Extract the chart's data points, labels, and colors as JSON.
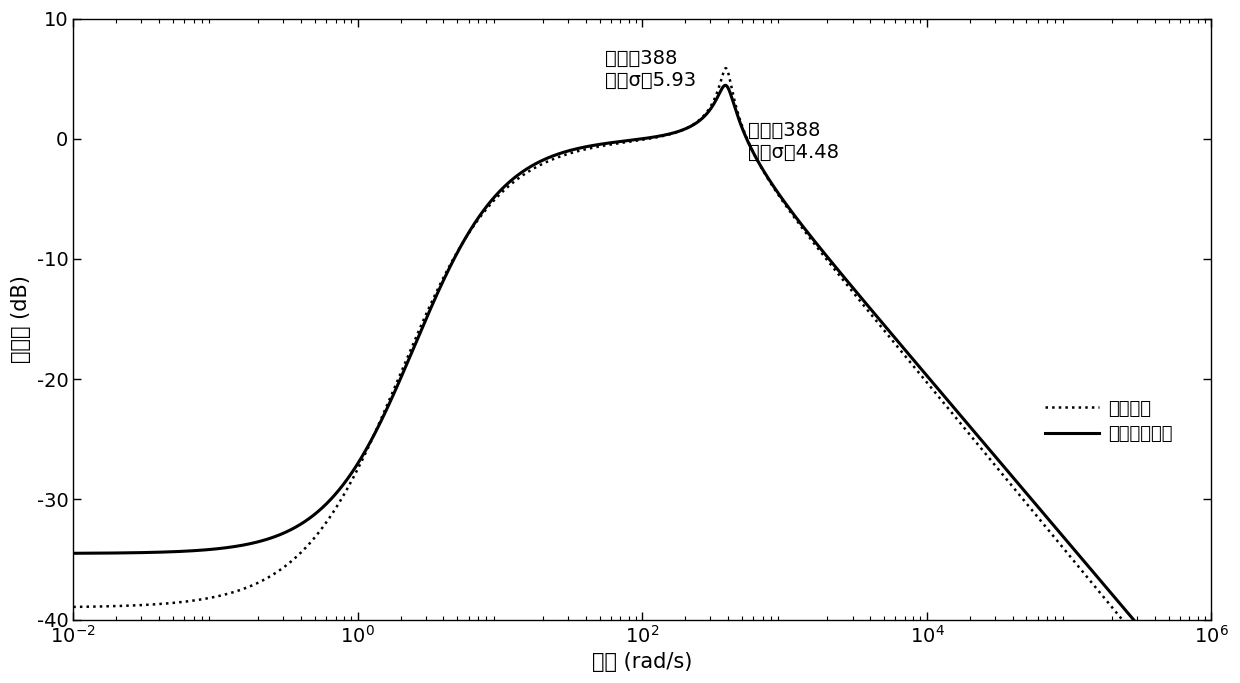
{
  "xlabel": "频率 (rad/s)",
  "ylabel": "奇异值 (dB)",
  "xlim_log": [
    -2,
    6
  ],
  "ylim": [
    -40,
    10
  ],
  "annotation1": "频率：388\n最大σ：5.93",
  "annotation2": "频率：388\n最大σ：4.48",
  "legend_dotted": "未加优化",
  "legend_solid": "粒子算法优化",
  "peak_freq": 388,
  "peak1_db": 5.93,
  "peak2_db": 4.48,
  "low1_db": -39.0,
  "low2_db": -34.5,
  "background_color": "#ffffff",
  "tick_label_size": 14,
  "axis_label_size": 15,
  "annot_fontsize": 14
}
